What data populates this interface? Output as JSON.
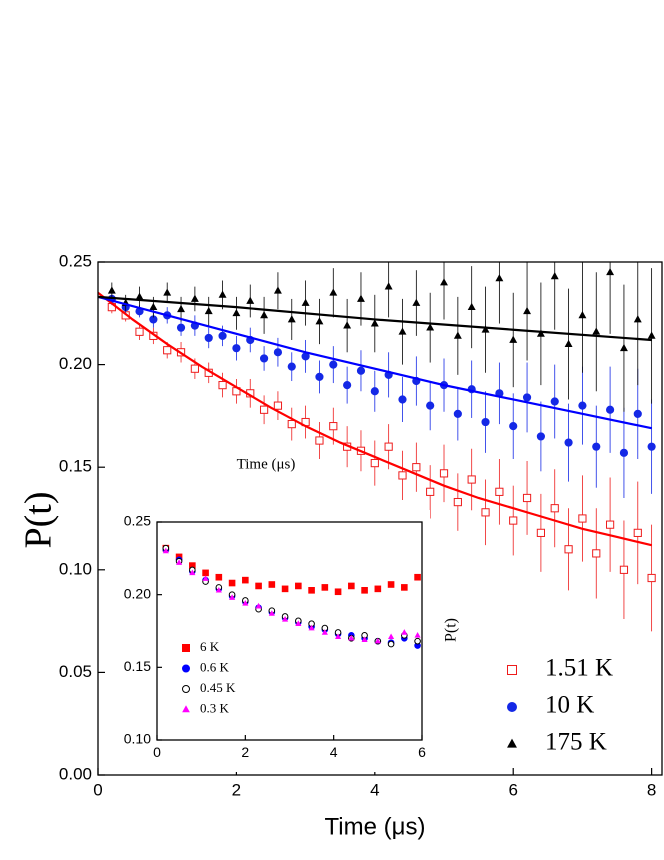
{
  "chart_data": [
    {
      "type": "scatter",
      "x_label": "Time (μs)",
      "y_label": "P(t)",
      "xlim": [
        0,
        8.15
      ],
      "ylim": [
        0,
        0.25
      ],
      "xticks": [
        0,
        2,
        4,
        6,
        8
      ],
      "yticks": [
        {
          "value": 0,
          "label": "0.00"
        },
        0.05,
        {
          "value": 0.1,
          "label": "0.10"
        },
        0.15,
        {
          "value": 0.2,
          "label": "0.20"
        },
        0.25
      ],
      "legend": "lower-right",
      "series": [
        {
          "name": "1.51 K",
          "color": "#ee1c1c",
          "marker": "open-square",
          "x": [
            0.2,
            0.4,
            0.6,
            0.8,
            1,
            1.2,
            1.4,
            1.6,
            1.8,
            2,
            2.2,
            2.4,
            2.6,
            2.8,
            3,
            3.2,
            3.4,
            3.6,
            3.8,
            4,
            4.2,
            4.4,
            4.6,
            4.8,
            5,
            5.2,
            5.4,
            5.6,
            5.8,
            6,
            6.2,
            6.4,
            6.6,
            6.8,
            7,
            7.2,
            7.4,
            7.6,
            7.8,
            8
          ],
          "values": [
            0.228,
            0.224,
            0.216,
            0.214,
            0.207,
            0.206,
            0.198,
            0.196,
            0.19,
            0.187,
            0.186,
            0.178,
            0.18,
            0.171,
            0.172,
            0.163,
            0.17,
            0.16,
            0.158,
            0.152,
            0.16,
            0.146,
            0.15,
            0.138,
            0.147,
            0.133,
            0.144,
            0.128,
            0.138,
            0.124,
            0.135,
            0.118,
            0.13,
            0.11,
            0.125,
            0.108,
            0.122,
            0.1,
            0.118,
            0.096
          ],
          "errors": [
            0.003,
            0.003,
            0.004,
            0.004,
            0.004,
            0.005,
            0.005,
            0.005,
            0.006,
            0.006,
            0.007,
            0.007,
            0.007,
            0.008,
            0.008,
            0.009,
            0.009,
            0.01,
            0.01,
            0.011,
            0.011,
            0.012,
            0.012,
            0.013,
            0.014,
            0.014,
            0.015,
            0.016,
            0.016,
            0.017,
            0.018,
            0.019,
            0.019,
            0.02,
            0.021,
            0.022,
            0.023,
            0.024,
            0.025,
            0.026
          ]
        },
        {
          "name": "10 K",
          "color": "#1428e6",
          "marker": "circle",
          "x": [
            0.2,
            0.4,
            0.6,
            0.8,
            1,
            1.2,
            1.4,
            1.6,
            1.8,
            2,
            2.2,
            2.4,
            2.6,
            2.8,
            3,
            3.2,
            3.4,
            3.6,
            3.8,
            4,
            4.2,
            4.4,
            4.6,
            4.8,
            5,
            5.2,
            5.4,
            5.6,
            5.8,
            6,
            6.2,
            6.4,
            6.6,
            6.8,
            7,
            7.2,
            7.4,
            7.6,
            7.8,
            8
          ],
          "values": [
            0.232,
            0.228,
            0.226,
            0.222,
            0.224,
            0.218,
            0.219,
            0.213,
            0.214,
            0.208,
            0.212,
            0.203,
            0.206,
            0.199,
            0.204,
            0.194,
            0.2,
            0.19,
            0.197,
            0.187,
            0.195,
            0.183,
            0.192,
            0.18,
            0.19,
            0.176,
            0.188,
            0.172,
            0.186,
            0.17,
            0.184,
            0.165,
            0.182,
            0.162,
            0.18,
            0.16,
            0.178,
            0.157,
            0.176,
            0.16
          ],
          "errors": [
            0.003,
            0.003,
            0.003,
            0.004,
            0.004,
            0.004,
            0.005,
            0.005,
            0.005,
            0.006,
            0.006,
            0.006,
            0.007,
            0.007,
            0.008,
            0.008,
            0.009,
            0.009,
            0.01,
            0.01,
            0.011,
            0.011,
            0.012,
            0.012,
            0.013,
            0.013,
            0.014,
            0.015,
            0.015,
            0.016,
            0.017,
            0.017,
            0.018,
            0.019,
            0.019,
            0.02,
            0.021,
            0.022,
            0.022,
            0.023
          ]
        },
        {
          "name": "175 K",
          "color": "#000000",
          "marker": "triangle",
          "x": [
            0.2,
            0.4,
            0.6,
            0.8,
            1,
            1.2,
            1.4,
            1.6,
            1.8,
            2,
            2.2,
            2.4,
            2.6,
            2.8,
            3,
            3.2,
            3.4,
            3.6,
            3.8,
            4,
            4.2,
            4.4,
            4.6,
            4.8,
            5,
            5.2,
            5.4,
            5.6,
            5.8,
            6,
            6.2,
            6.4,
            6.6,
            6.8,
            7,
            7.2,
            7.4,
            7.6,
            7.8,
            8
          ],
          "values": [
            0.236,
            0.23,
            0.233,
            0.228,
            0.235,
            0.227,
            0.232,
            0.226,
            0.234,
            0.225,
            0.231,
            0.224,
            0.236,
            0.222,
            0.23,
            0.221,
            0.235,
            0.219,
            0.232,
            0.22,
            0.238,
            0.216,
            0.23,
            0.218,
            0.24,
            0.214,
            0.228,
            0.217,
            0.242,
            0.212,
            0.226,
            0.215,
            0.243,
            0.21,
            0.224,
            0.216,
            0.245,
            0.208,
            0.222,
            0.214
          ],
          "errors": [
            0.004,
            0.004,
            0.005,
            0.005,
            0.005,
            0.006,
            0.006,
            0.007,
            0.007,
            0.008,
            0.008,
            0.009,
            0.009,
            0.01,
            0.011,
            0.011,
            0.012,
            0.013,
            0.013,
            0.014,
            0.015,
            0.016,
            0.016,
            0.017,
            0.018,
            0.019,
            0.02,
            0.021,
            0.022,
            0.023,
            0.024,
            0.025,
            0.026,
            0.027,
            0.028,
            0.029,
            0.03,
            0.031,
            0.032,
            0.033
          ]
        },
        {
          "color": "#ff0000",
          "marker": "line",
          "x": [
            0,
            0.5,
            1,
            1.5,
            2,
            2.5,
            3,
            3.5,
            4,
            4.5,
            5,
            5.5,
            6,
            6.5,
            7,
            7.5,
            8
          ],
          "values": [
            0.235,
            0.222,
            0.21,
            0.199,
            0.189,
            0.179,
            0.17,
            0.162,
            0.155,
            0.148,
            0.141,
            0.135,
            0.13,
            0.125,
            0.12,
            0.116,
            0.112
          ]
        },
        {
          "color": "#0000ff",
          "marker": "line",
          "x": [
            0,
            1,
            2,
            3,
            4,
            5,
            6,
            7,
            8
          ],
          "values": [
            0.233,
            0.224,
            0.215,
            0.206,
            0.198,
            0.19,
            0.183,
            0.176,
            0.169
          ]
        },
        {
          "color": "#000000",
          "marker": "line",
          "x": [
            0,
            2,
            4,
            6,
            8
          ],
          "values": [
            0.233,
            0.228,
            0.222,
            0.217,
            0.212
          ]
        }
      ]
    },
    {
      "type": "scatter",
      "x_label": "Time (μs)",
      "y_label": "P(t)",
      "xlim": [
        0,
        6
      ],
      "ylim": [
        0.1,
        0.25
      ],
      "xticks": [
        0,
        2,
        4,
        6
      ],
      "yticks": [
        {
          "value": 0.1,
          "label": "0.10"
        },
        0.15,
        {
          "value": 0.2,
          "label": "0.20"
        },
        0.25
      ],
      "legend": "lower-left",
      "series": [
        {
          "name": "6 K",
          "color": "#ff0000",
          "marker": "square",
          "x": [
            0.2,
            0.5,
            0.8,
            1.1,
            1.4,
            1.7,
            2,
            2.3,
            2.6,
            2.9,
            3.2,
            3.5,
            3.8,
            4.1,
            4.4,
            4.7,
            5,
            5.3,
            5.6,
            5.9
          ],
          "values": [
            0.232,
            0.226,
            0.22,
            0.215,
            0.212,
            0.208,
            0.21,
            0.206,
            0.207,
            0.204,
            0.206,
            0.203,
            0.205,
            0.202,
            0.206,
            0.203,
            0.204,
            0.207,
            0.205,
            0.212
          ]
        },
        {
          "name": "0.6 K",
          "color": "#0000ff",
          "marker": "circle",
          "x": [
            0.2,
            0.5,
            0.8,
            1.1,
            1.4,
            1.7,
            2,
            2.3,
            2.6,
            2.9,
            3.2,
            3.5,
            3.8,
            4.1,
            4.4,
            4.7,
            5,
            5.3,
            5.6,
            5.9
          ],
          "values": [
            0.231,
            0.224,
            0.216,
            0.21,
            0.204,
            0.199,
            0.195,
            0.191,
            0.188,
            0.184,
            0.181,
            0.178,
            0.176,
            0.173,
            0.172,
            0.17,
            0.168,
            0.167,
            0.17,
            0.165
          ]
        },
        {
          "name": "0.45 K",
          "color": "#000000",
          "marker": "open-circle",
          "x": [
            0.2,
            0.5,
            0.8,
            1.1,
            1.4,
            1.7,
            2,
            2.3,
            2.6,
            2.9,
            3.2,
            3.5,
            3.8,
            4.1,
            4.4,
            4.7,
            5,
            5.3,
            5.6,
            5.9
          ],
          "values": [
            0.232,
            0.223,
            0.217,
            0.209,
            0.205,
            0.2,
            0.196,
            0.19,
            0.189,
            0.185,
            0.182,
            0.18,
            0.177,
            0.174,
            0.17,
            0.172,
            0.168,
            0.166,
            0.172,
            0.168
          ]
        },
        {
          "name": "0.3 K",
          "color": "#ff00ff",
          "marker": "triangle",
          "x": [
            0.2,
            0.5,
            0.8,
            1.1,
            1.4,
            1.7,
            2,
            2.3,
            2.6,
            2.9,
            3.2,
            3.5,
            3.8,
            4.1,
            4.4,
            4.7,
            5,
            5.3,
            5.6,
            5.9
          ],
          "values": [
            0.23,
            0.222,
            0.215,
            0.211,
            0.203,
            0.198,
            0.194,
            0.192,
            0.187,
            0.183,
            0.18,
            0.177,
            0.174,
            0.171,
            0.17,
            0.169,
            0.168,
            0.171,
            0.174,
            0.172
          ]
        }
      ]
    }
  ]
}
